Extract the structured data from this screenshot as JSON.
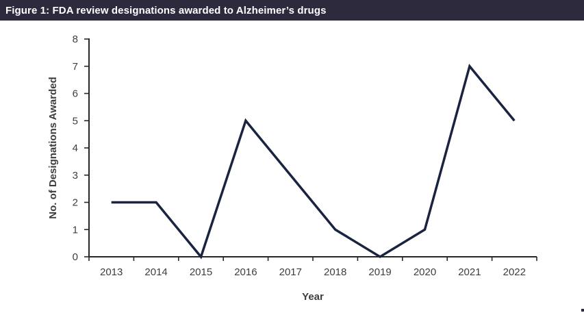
{
  "header": {
    "title": "Figure 1: FDA review designations awarded to Alzheimer’s drugs"
  },
  "colors": {
    "header_bg": "#2e2a3e",
    "header_text": "#ffffff",
    "line": "#1a2340",
    "axis": "#262626",
    "tick_text": "#3d3d3d",
    "axis_title_text": "#3d3d3d",
    "corner_mark": "#2e2a3e"
  },
  "chart_data": {
    "type": "line",
    "categories": [
      "2013",
      "2014",
      "2015",
      "2016",
      "2017",
      "2018",
      "2019",
      "2020",
      "2021",
      "2022"
    ],
    "values": [
      2,
      2,
      0,
      5,
      3,
      1,
      0,
      1,
      7,
      5
    ],
    "series_name": "FDA review designations awarded",
    "title": "",
    "xlabel": "Year",
    "ylabel": "No. of Designations Awarded",
    "ylim": [
      0,
      8
    ],
    "ytick_step": 1,
    "grid": false,
    "legend": false,
    "axis_tick_position": "between-categories"
  }
}
